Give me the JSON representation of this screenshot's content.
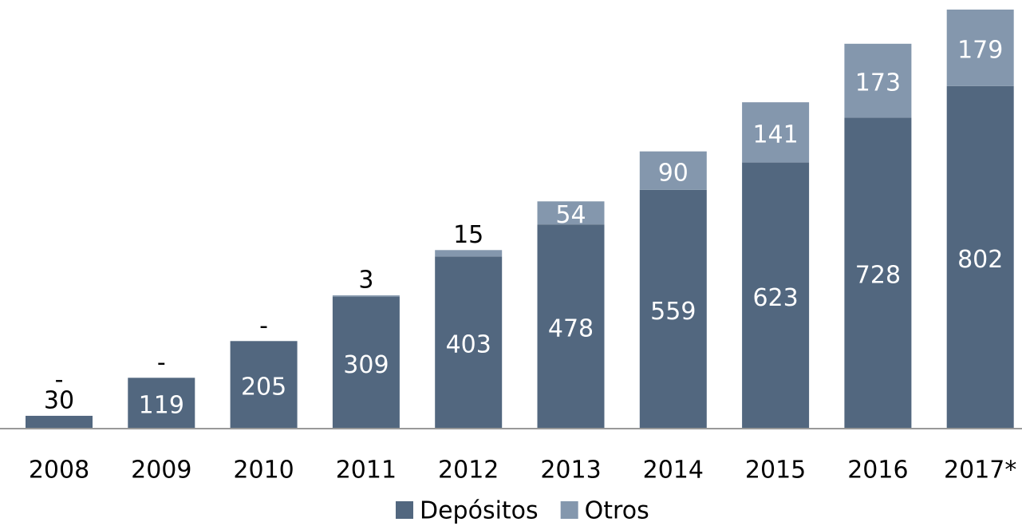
{
  "chart_data": {
    "type": "stacked-bar",
    "categories": [
      "2008",
      "2009",
      "2010",
      "2011",
      "2012",
      "2013",
      "2014",
      "2015",
      "2016",
      "2017*"
    ],
    "series": [
      {
        "name": "Depósitos",
        "color": "#52677f",
        "values": [
          30,
          119,
          205,
          309,
          403,
          478,
          559,
          623,
          728,
          802
        ]
      },
      {
        "name": "Otros",
        "color": "#8497ad",
        "values": [
          0,
          0,
          0,
          3,
          15,
          54,
          90,
          141,
          173,
          179
        ],
        "value_labels": [
          "-",
          "-",
          "-",
          "3",
          "15",
          "54",
          "90",
          "141",
          "173",
          "179"
        ]
      }
    ]
  }
}
